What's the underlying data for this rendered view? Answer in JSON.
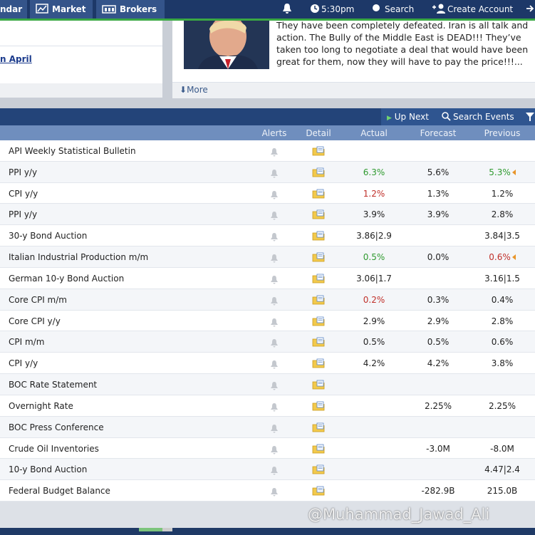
{
  "nav": {
    "tabs": [
      "ndar",
      "Market",
      "Brokers"
    ],
    "time": "5:30pm",
    "search": "Search",
    "create_account": "Create Account"
  },
  "left_panel": {
    "link": "n April"
  },
  "news": {
    "lines": [
      "They have been completely defeated. Iran is all talk and",
      "action. The Bully of the Middle East is DEAD!!! They’ve",
      "taken too long to negotiate a deal that would have been",
      "great for them, now they will have to pay the price!!!..."
    ],
    "more": "More"
  },
  "table": {
    "toolbar": {
      "up_next": "Up Next",
      "search_events": "Search Events"
    },
    "columns": [
      "Alerts",
      "Detail",
      "Actual",
      "Forecast",
      "Previous"
    ],
    "rows": [
      {
        "event": "API Weekly Statistical Bulletin"
      },
      {
        "event": "PPI y/y",
        "actual": "6.3%",
        "actual_color": "#2f9a2f",
        "forecast": "5.6%",
        "previous": "5.3%",
        "previous_color": "#2f9a2f",
        "previous_revised": true
      },
      {
        "event": "CPI y/y",
        "actual": "1.2%",
        "actual_color": "#c0302a",
        "forecast": "1.3%",
        "previous": "1.2%"
      },
      {
        "event": "PPI y/y",
        "actual": "3.9%",
        "forecast": "3.9%",
        "previous": "2.8%"
      },
      {
        "event": "30-y Bond Auction",
        "actual": "3.86|2.9",
        "previous": "3.84|3.5"
      },
      {
        "event": "Italian Industrial Production m/m",
        "actual": "0.5%",
        "actual_color": "#2f9a2f",
        "forecast": "0.0%",
        "previous": "0.6%",
        "previous_color": "#c0302a",
        "previous_revised": true
      },
      {
        "event": "German 10-y Bond Auction",
        "actual": "3.06|1.7",
        "previous": "3.16|1.5"
      },
      {
        "event": "Core CPI m/m",
        "actual": "0.2%",
        "actual_color": "#c0302a",
        "forecast": "0.3%",
        "previous": "0.4%"
      },
      {
        "event": "Core CPI y/y",
        "actual": "2.9%",
        "forecast": "2.9%",
        "previous": "2.8%"
      },
      {
        "event": "CPI m/m",
        "actual": "0.5%",
        "forecast": "0.5%",
        "previous": "0.6%"
      },
      {
        "event": "CPI y/y",
        "actual": "4.2%",
        "forecast": "4.2%",
        "previous": "3.8%"
      },
      {
        "event": "BOC Rate Statement"
      },
      {
        "event": "Overnight Rate",
        "forecast": "2.25%",
        "previous": "2.25%"
      },
      {
        "event": "BOC Press Conference"
      },
      {
        "event": "Crude Oil Inventories",
        "forecast": "-3.0M",
        "previous": "-8.0M"
      },
      {
        "event": "10-y Bond Auction",
        "previous": "4.47|2.4"
      },
      {
        "event": "Federal Budget Balance",
        "forecast": "-282.9B",
        "previous": "215.0B"
      }
    ]
  },
  "watermark": "@Muhammad_Jawad_Ali"
}
